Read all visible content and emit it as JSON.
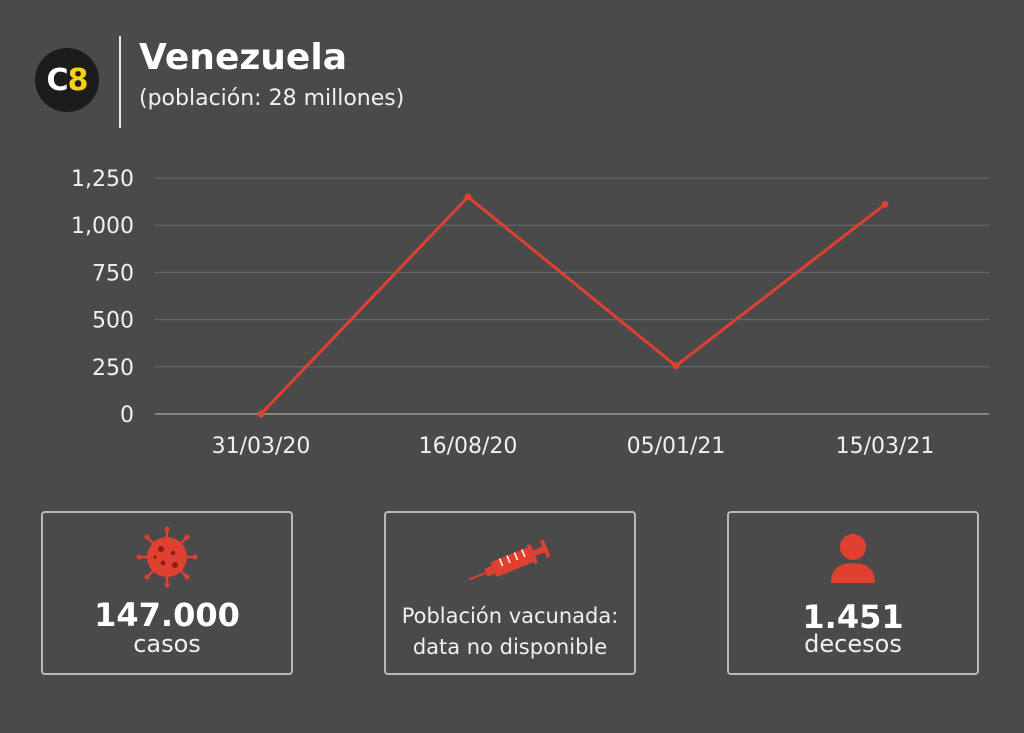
{
  "header": {
    "logo_c": "C",
    "logo_8": "8",
    "title": "Venezuela",
    "subtitle": "(población: 28 millones)"
  },
  "chart_data": {
    "type": "line",
    "title": "",
    "xlabel": "",
    "ylabel": "",
    "categories": [
      "31/03/20",
      "16/08/20",
      "05/01/21",
      "15/03/21"
    ],
    "series": [
      {
        "values": [
          0,
          1150,
          255,
          1110
        ]
      }
    ],
    "ylim": [
      0,
      1250
    ],
    "yticks": [
      0,
      250,
      500,
      750,
      1000,
      1250
    ],
    "ytick_labels": [
      "0",
      "250",
      "500",
      "750",
      "1,000",
      "1,250"
    ],
    "grid": true,
    "line_color": "#e0402f"
  },
  "cards": {
    "cases": {
      "icon": "virus-icon",
      "value": "147.000",
      "label": "casos"
    },
    "vaccine": {
      "icon": "syringe-icon",
      "line1": "Población vacunada:",
      "line2": "data no disponible"
    },
    "deaths": {
      "icon": "person-icon",
      "value": "1.451",
      "label": "decesos"
    }
  },
  "colors": {
    "background": "#4a4a4a",
    "accent_red": "#e0402f",
    "logo_yellow": "#f5d10f"
  }
}
